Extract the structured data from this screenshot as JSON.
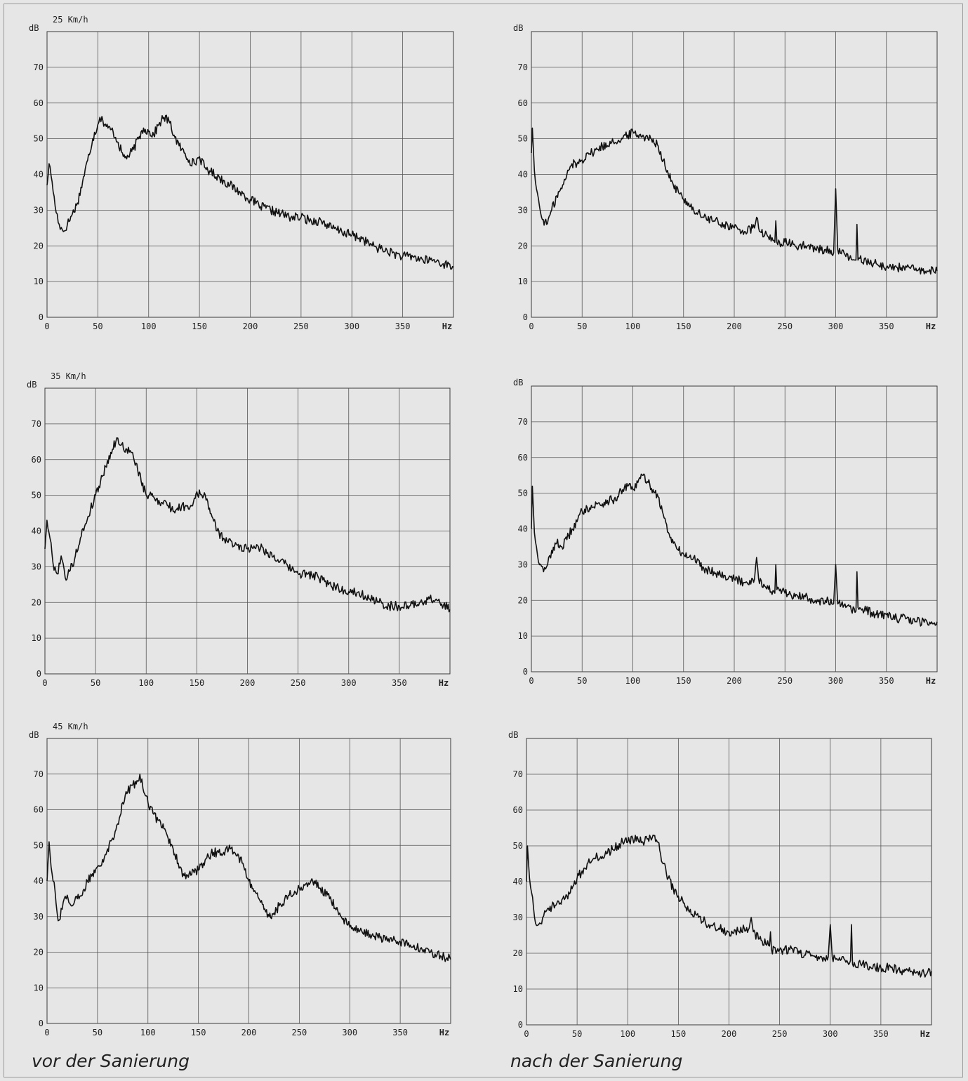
{
  "captions": {
    "left": "vor der Sanierung",
    "right": "nach der Sanierung"
  },
  "chart_data": [
    {
      "type": "line",
      "panel": "row1-left",
      "speed_label": "25 Km/h",
      "xunit": "Hz",
      "yunit": "dB",
      "xlim": [
        0,
        400
      ],
      "ylim": [
        0,
        80
      ],
      "xticks": [
        0,
        50,
        100,
        150,
        200,
        250,
        300,
        350
      ],
      "yticks": [
        0,
        10,
        20,
        30,
        40,
        50,
        60,
        70
      ],
      "grid": true,
      "series": [
        {
          "x": [
            0,
            2,
            5,
            8,
            12,
            16,
            20,
            25,
            30,
            35,
            40,
            45,
            50,
            52,
            55,
            60,
            65,
            70,
            75,
            80,
            85,
            90,
            95,
            100,
            105,
            110,
            115,
            120,
            125,
            130,
            135,
            140,
            145,
            150,
            155,
            160,
            170,
            180,
            190,
            200,
            210,
            220,
            230,
            240,
            250,
            260,
            270,
            280,
            290,
            300,
            310,
            320,
            330,
            340,
            350,
            360,
            370,
            380,
            390,
            400
          ],
          "y": [
            37,
            43,
            38,
            31,
            26,
            24,
            26,
            29,
            32,
            38,
            44,
            50,
            54,
            56,
            55,
            53,
            52,
            49,
            45,
            45,
            47,
            50,
            53,
            52,
            51,
            54,
            56,
            55,
            51,
            48,
            46,
            44,
            43,
            45,
            42,
            41,
            39,
            37,
            35,
            33,
            31,
            30,
            29,
            28,
            28,
            27,
            27,
            25,
            24,
            23,
            22,
            20,
            19,
            18,
            17,
            17,
            16,
            16,
            15,
            14
          ]
        }
      ]
    },
    {
      "type": "line",
      "panel": "row1-right",
      "speed_label": "",
      "xunit": "Hz",
      "yunit": "dB",
      "xlim": [
        0,
        400
      ],
      "ylim": [
        0,
        80
      ],
      "xticks": [
        0,
        50,
        100,
        150,
        200,
        250,
        300,
        350
      ],
      "yticks": [
        0,
        10,
        20,
        30,
        40,
        50,
        60,
        70
      ],
      "grid": true,
      "series": [
        {
          "x": [
            0,
            1,
            3,
            5,
            8,
            10,
            15,
            20,
            25,
            30,
            35,
            40,
            45,
            50,
            55,
            60,
            65,
            70,
            75,
            80,
            85,
            90,
            95,
            100,
            105,
            110,
            115,
            120,
            125,
            130,
            135,
            140,
            145,
            150,
            155,
            160,
            170,
            180,
            190,
            200,
            210,
            220,
            222,
            224,
            230,
            240,
            241,
            242,
            250,
            260,
            270,
            280,
            290,
            298,
            300,
            302,
            310,
            320,
            321,
            322,
            330,
            340,
            350,
            360,
            370,
            380,
            390,
            400
          ],
          "y": [
            46,
            53,
            41,
            36,
            31,
            28,
            26,
            30,
            34,
            36,
            40,
            43,
            43,
            44,
            46,
            46,
            47,
            48,
            48,
            50,
            49,
            50,
            51,
            52,
            51,
            51,
            50,
            50,
            48,
            44,
            40,
            37,
            35,
            33,
            32,
            30,
            28,
            27,
            26,
            25,
            24,
            25,
            28,
            25,
            23,
            21,
            27,
            21,
            21,
            20,
            20,
            19,
            19,
            18,
            36,
            19,
            17,
            16,
            26,
            16,
            16,
            15,
            14,
            14,
            14,
            13,
            13,
            13
          ]
        }
      ]
    },
    {
      "type": "line",
      "panel": "row2-left",
      "speed_label": "35 Km/h",
      "xunit": "Hz",
      "yunit": "dB",
      "xlim": [
        0,
        400
      ],
      "ylim": [
        0,
        80
      ],
      "xticks": [
        0,
        50,
        100,
        150,
        200,
        250,
        300,
        350
      ],
      "yticks": [
        0,
        10,
        20,
        30,
        40,
        50,
        60,
        70
      ],
      "grid": true,
      "series": [
        {
          "x": [
            0,
            2,
            5,
            8,
            12,
            16,
            20,
            25,
            30,
            35,
            40,
            45,
            50,
            55,
            60,
            65,
            70,
            72,
            75,
            80,
            85,
            90,
            95,
            100,
            105,
            110,
            115,
            120,
            125,
            130,
            135,
            140,
            145,
            150,
            155,
            160,
            165,
            170,
            180,
            190,
            200,
            210,
            220,
            230,
            240,
            250,
            260,
            270,
            280,
            290,
            300,
            310,
            320,
            330,
            340,
            350,
            360,
            370,
            380,
            390,
            400
          ],
          "y": [
            35,
            43,
            38,
            31,
            28,
            33,
            27,
            29,
            33,
            38,
            42,
            46,
            50,
            54,
            58,
            62,
            65,
            66,
            64,
            63,
            62,
            59,
            54,
            50,
            50,
            49,
            48,
            48,
            46,
            46,
            47,
            47,
            47,
            51,
            50,
            49,
            44,
            40,
            37,
            36,
            35,
            36,
            34,
            32,
            30,
            28,
            28,
            27,
            25,
            24,
            23,
            23,
            21,
            20,
            19,
            19,
            19,
            20,
            21,
            20,
            18
          ]
        }
      ]
    },
    {
      "type": "line",
      "panel": "row2-right",
      "speed_label": "",
      "xunit": "Hz",
      "yunit": "dB",
      "xlim": [
        0,
        400
      ],
      "ylim": [
        0,
        80
      ],
      "xticks": [
        0,
        50,
        100,
        150,
        200,
        250,
        300,
        350
      ],
      "yticks": [
        0,
        10,
        20,
        30,
        40,
        50,
        60,
        70
      ],
      "grid": true,
      "series": [
        {
          "x": [
            0,
            1,
            3,
            5,
            8,
            12,
            16,
            20,
            25,
            30,
            35,
            40,
            45,
            50,
            55,
            60,
            65,
            70,
            75,
            80,
            85,
            90,
            95,
            100,
            105,
            110,
            115,
            120,
            125,
            130,
            135,
            140,
            145,
            150,
            155,
            160,
            170,
            180,
            190,
            200,
            210,
            220,
            222,
            224,
            230,
            240,
            241,
            242,
            250,
            260,
            270,
            280,
            290,
            298,
            300,
            302,
            310,
            320,
            321,
            322,
            330,
            340,
            350,
            360,
            370,
            380,
            390,
            400
          ],
          "y": [
            40,
            52,
            39,
            35,
            30,
            28,
            30,
            34,
            36,
            35,
            37,
            40,
            42,
            45,
            46,
            46,
            47,
            47,
            48,
            48,
            49,
            51,
            52,
            51,
            53,
            55,
            53,
            51,
            49,
            44,
            39,
            36,
            34,
            33,
            32,
            32,
            29,
            28,
            27,
            26,
            25,
            26,
            32,
            26,
            24,
            22,
            30,
            23,
            22,
            21,
            21,
            20,
            20,
            19,
            30,
            19,
            18,
            17,
            28,
            18,
            17,
            16,
            16,
            15,
            15,
            14,
            14,
            14
          ]
        }
      ]
    },
    {
      "type": "line",
      "panel": "row3-left",
      "speed_label": "45 Km/h",
      "xunit": "Hz",
      "yunit": "dB",
      "xlim": [
        0,
        400
      ],
      "ylim": [
        0,
        80
      ],
      "xticks": [
        0,
        50,
        100,
        150,
        200,
        250,
        300,
        350
      ],
      "yticks": [
        0,
        10,
        20,
        30,
        40,
        50,
        60,
        70
      ],
      "grid": true,
      "series": [
        {
          "x": [
            0,
            2,
            5,
            8,
            10,
            12,
            16,
            20,
            25,
            30,
            35,
            40,
            45,
            50,
            55,
            60,
            65,
            70,
            75,
            80,
            85,
            90,
            92,
            95,
            100,
            105,
            110,
            115,
            120,
            125,
            130,
            135,
            140,
            145,
            150,
            155,
            160,
            165,
            170,
            175,
            180,
            185,
            190,
            195,
            200,
            205,
            210,
            215,
            220,
            225,
            230,
            240,
            250,
            260,
            265,
            270,
            280,
            290,
            300,
            310,
            320,
            330,
            340,
            350,
            360,
            370,
            380,
            390,
            400
          ],
          "y": [
            40,
            51,
            42,
            37,
            31,
            29,
            34,
            36,
            33,
            35,
            36,
            40,
            42,
            44,
            46,
            49,
            52,
            56,
            62,
            65,
            67,
            68,
            70,
            66,
            62,
            59,
            57,
            56,
            52,
            49,
            45,
            42,
            41,
            43,
            43,
            45,
            47,
            48,
            48,
            48,
            49,
            48,
            47,
            44,
            40,
            37,
            35,
            32,
            30,
            31,
            33,
            36,
            38,
            39,
            40,
            38,
            35,
            31,
            27,
            26,
            25,
            24,
            24,
            23,
            22,
            21,
            20,
            19,
            18
          ]
        }
      ]
    },
    {
      "type": "line",
      "panel": "row3-right",
      "speed_label": "",
      "xunit": "Hz",
      "yunit": "dB",
      "xlim": [
        0,
        400
      ],
      "ylim": [
        0,
        80
      ],
      "xticks": [
        0,
        50,
        100,
        150,
        200,
        250,
        300,
        350
      ],
      "yticks": [
        0,
        10,
        20,
        30,
        40,
        50,
        60,
        70
      ],
      "grid": true,
      "series": [
        {
          "x": [
            0,
            1,
            3,
            5,
            8,
            12,
            16,
            20,
            25,
            30,
            35,
            40,
            45,
            50,
            55,
            60,
            65,
            70,
            75,
            80,
            85,
            90,
            95,
            100,
            105,
            110,
            115,
            120,
            125,
            130,
            135,
            140,
            145,
            150,
            155,
            160,
            170,
            180,
            190,
            200,
            210,
            215,
            220,
            222,
            224,
            230,
            240,
            241,
            242,
            250,
            260,
            270,
            280,
            290,
            298,
            300,
            302,
            310,
            320,
            321,
            322,
            330,
            340,
            350,
            360,
            370,
            380,
            390,
            400
          ],
          "y": [
            40,
            50,
            41,
            37,
            30,
            28,
            30,
            32,
            33,
            34,
            35,
            36,
            38,
            41,
            43,
            45,
            46,
            47,
            47,
            48,
            49,
            50,
            51,
            51,
            52,
            52,
            51,
            52,
            53,
            51,
            45,
            41,
            38,
            36,
            34,
            32,
            30,
            28,
            27,
            26,
            26,
            27,
            27,
            30,
            26,
            24,
            22,
            26,
            21,
            21,
            21,
            20,
            20,
            19,
            19,
            28,
            19,
            18,
            18,
            28,
            17,
            17,
            16,
            16,
            16,
            15,
            15,
            14,
            15
          ]
        }
      ]
    }
  ]
}
